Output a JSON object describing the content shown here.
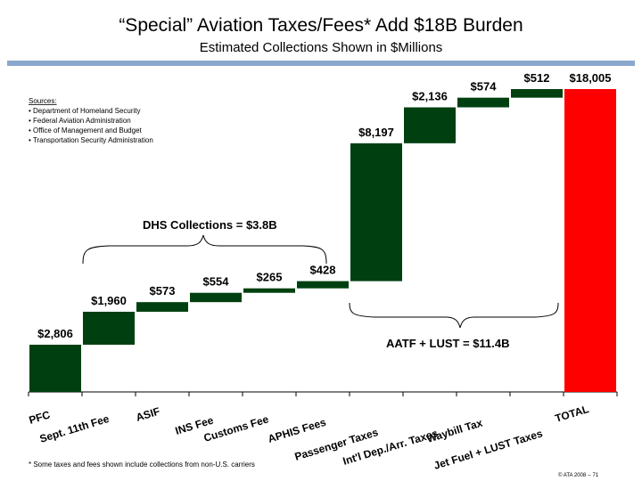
{
  "header": {
    "title": "“Special” Aviation Taxes/Fees* Add $18B Burden",
    "subtitle": "Estimated Collections Shown in $Millions"
  },
  "sources": {
    "heading": "Sources:",
    "items": [
      "Department of Homeland Security",
      "Federal Aviation Administration",
      "Office of Management and Budget",
      "Transportation Security Administration"
    ]
  },
  "annotations": {
    "dhs": "DHS Collections = $3.8B",
    "aatf": "AATF + LUST = $11.4B"
  },
  "footnote": "* Some taxes and fees shown include collections from non-U.S. carriers",
  "copyright": "© ATA 2008 -- 71",
  "colors": {
    "bar": "#004010",
    "total": "#ff0000",
    "rule": "#8aa8cc"
  },
  "chart_data": {
    "type": "bar",
    "subtype": "waterfall",
    "title": "“Special” Aviation Taxes/Fees* Add $18B Burden",
    "subtitle": "Estimated Collections Shown in $Millions",
    "categories": [
      "PFC",
      "Sept. 11th Fee",
      "ASIF",
      "INS Fee",
      "Customs Fee",
      "APHIS Fees",
      "Passenger Taxes",
      "Int'l Dep./Arr. Taxes",
      "Waybill Tax",
      "Jet Fuel + LUST Taxes",
      "TOTAL"
    ],
    "values": [
      2806,
      1960,
      573,
      554,
      265,
      428,
      8197,
      2136,
      574,
      512,
      18005
    ],
    "value_labels": [
      "$2,806",
      "$1,960",
      "$573",
      "$554",
      "$265",
      "$428",
      "$8,197",
      "$2,136",
      "$574",
      "$512",
      "$18,005"
    ],
    "total_index": 10,
    "ylim": [
      0,
      18005
    ],
    "grid": false,
    "legend": "none"
  }
}
